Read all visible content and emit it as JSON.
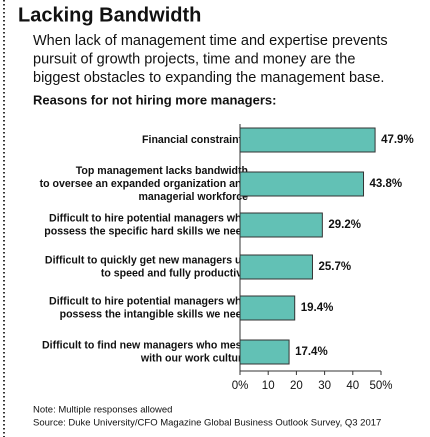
{
  "chart_data": {
    "type": "bar",
    "orientation": "horizontal",
    "title": "Lacking Bandwidth",
    "subtitle": "When lack of management time and expertise prevents\npursuit of growth projects, time and money are the\nbiggest obstacles to expanding the management base.",
    "heading": "Reasons for not hiring more managers:",
    "categories": [
      "Financial constraints",
      "Top management lacks bandwidth\nto oversee an expanded organization and\nmanagerial workforce",
      "Difficult to hire potential managers who\npossess the specific hard skills we need",
      "Difficult to quickly get new managers up\nto speed and fully productive",
      "Difficult to hire potential managers who\npossess the intangible skills we need",
      "Difficult to find new managers who mesh\nwith our work culture"
    ],
    "values": [
      47.9,
      43.8,
      29.2,
      25.7,
      19.4,
      17.4
    ],
    "value_labels": [
      "47.9%",
      "43.8%",
      "29.2%",
      "25.7%",
      "19.4%",
      "17.4%"
    ],
    "color": "#62c1b5",
    "xlim": [
      0,
      50
    ],
    "xticks": [
      {
        "value": 0,
        "label": "0%"
      },
      10,
      20,
      30,
      40,
      {
        "value": 50,
        "label": "50%"
      }
    ],
    "notes": [
      "Note: Multiple responses allowed",
      "Source: Duke University/CFO Magazine Global Business Outlook Survey, Q3 2017"
    ]
  }
}
